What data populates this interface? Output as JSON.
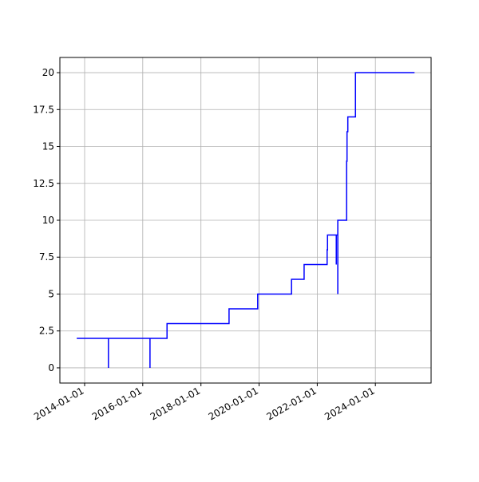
{
  "chart_data": {
    "type": "line",
    "x": [
      "2013-09-24",
      "2014-10-27",
      "2014-10-27",
      "2014-10-27",
      "2016-04-01",
      "2016-04-01",
      "2016-04-01",
      "2016-11-01",
      "2016-11-01",
      "2018-12-20",
      "2018-12-20",
      "2019-12-15",
      "2019-12-15",
      "2021-02-12",
      "2021-02-12",
      "2021-07-20",
      "2021-07-20",
      "2022-05-05",
      "2022-05-05",
      "2022-05-10",
      "2022-05-10",
      "2022-08-28",
      "2022-08-28",
      "2022-08-28",
      "2022-09-16",
      "2022-09-16",
      "2022-09-16",
      "2023-01-05",
      "2023-01-05",
      "2023-01-10",
      "2023-01-10",
      "2023-01-20",
      "2023-01-20",
      "2023-04-26",
      "2023-04-26",
      "2025-05-07"
    ],
    "series": [
      {
        "color": "#0000ff",
        "values": [
          2,
          2,
          0,
          2,
          2,
          0,
          2,
          2,
          3,
          3,
          4,
          4,
          5,
          5,
          6,
          6,
          7,
          7,
          8,
          8,
          9,
          9,
          7,
          9,
          9,
          5,
          10,
          10,
          14,
          14,
          16,
          16,
          17,
          17,
          20,
          20
        ]
      }
    ],
    "xlim": [
      "2013-02-24",
      "2025-12-01"
    ],
    "xticks": [
      "2014-01-01",
      "2016-01-01",
      "2018-01-01",
      "2020-01-01",
      "2022-01-01",
      "2024-01-01"
    ],
    "ylim": [
      -1.03,
      21.03
    ],
    "yticks": [
      0,
      2.5,
      5,
      7.5,
      10,
      12.5,
      15,
      17.5,
      20
    ],
    "grid": true
  }
}
